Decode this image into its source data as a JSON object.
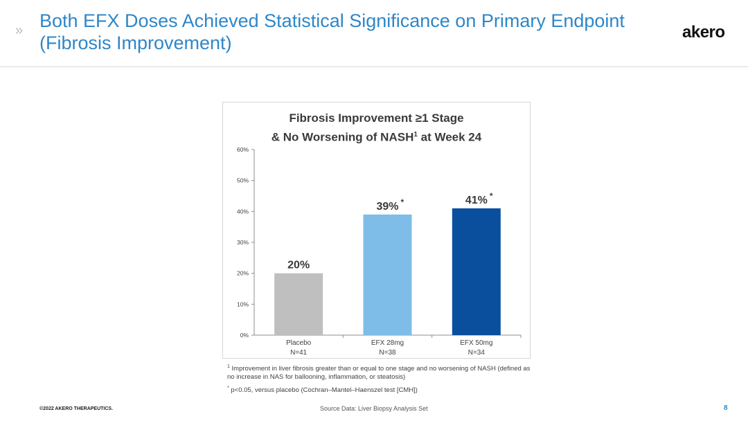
{
  "slide": {
    "chevron": "»",
    "title": "Both EFX Doses Achieved Statistical Significance on Primary Endpoint (Fibrosis Improvement)",
    "logo_text": "akero",
    "copyright": "©2022 AKERO THERAPEUTICS.",
    "source": "Source Data: Liver Biopsy Analysis Set",
    "page_number": "8"
  },
  "chart_data": {
    "type": "bar",
    "title_line1": "Fibrosis Improvement ≥1 Stage",
    "title_line2_pre": "& No Worsening of NASH",
    "title_line2_sup": "1",
    "title_line2_post": " at Week 24",
    "categories": [
      "Placebo",
      "EFX 28mg",
      "EFX 50mg"
    ],
    "category_sublabels": [
      "N=41",
      "N=38",
      "N=34"
    ],
    "values": [
      20,
      39,
      41
    ],
    "value_labels": [
      "20%",
      "39%",
      "41%"
    ],
    "significance_markers": [
      "",
      "*",
      "*"
    ],
    "bar_colors": [
      "#bfbfbf",
      "#7dbde8",
      "#0a4f9e"
    ],
    "y_ticks": [
      "0%",
      "10%",
      "20%",
      "30%",
      "40%",
      "50%",
      "60%"
    ],
    "ylim": [
      0,
      60
    ],
    "grid": false,
    "legend": "none"
  },
  "footnotes": {
    "note1_marker": "1",
    "note1": " Improvement in liver fibrosis greater than or equal to one stage and no worsening of NASH (defined as no increase in NAS for ballooning, inflammation, or steatosis)",
    "note2_marker": "*",
    "note2": " p<0.05, versus placebo (Cochran–Mantel–Haenszel test [CMH])"
  }
}
